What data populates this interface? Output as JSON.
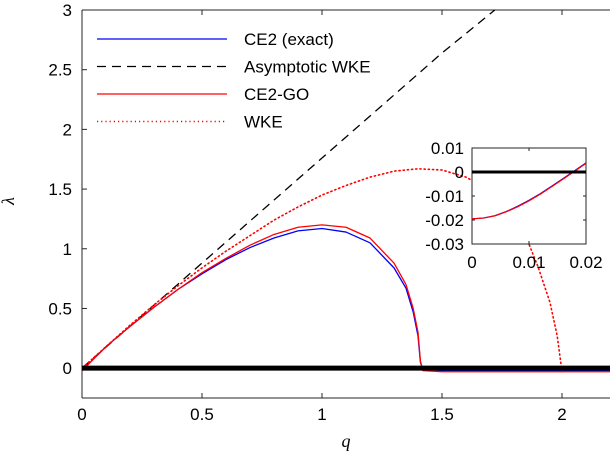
{
  "chart_data": [
    {
      "type": "line",
      "xlabel": "q",
      "ylabel": "λ",
      "xlim": [
        0,
        2.2
      ],
      "ylim": [
        -0.25,
        3
      ],
      "xticks": [
        "0",
        "0.5",
        "1",
        "1.5",
        "2"
      ],
      "yticks": [
        "0",
        "0.5",
        "1",
        "1.5",
        "2",
        "2.5",
        "3"
      ],
      "legend_position": "top-left",
      "series": [
        {
          "name": "CE2 (exact)",
          "color": "#0000ff",
          "style": "solid",
          "x": [
            0,
            0.05,
            0.1,
            0.2,
            0.3,
            0.4,
            0.5,
            0.6,
            0.7,
            0.8,
            0.9,
            1.0,
            1.1,
            1.2,
            1.3,
            1.35,
            1.38,
            1.4,
            1.41,
            1.42,
            1.5,
            1.8,
            2.2
          ],
          "y": [
            -0.02,
            0.08,
            0.18,
            0.35,
            0.51,
            0.66,
            0.79,
            0.91,
            1.01,
            1.09,
            1.15,
            1.17,
            1.14,
            1.05,
            0.84,
            0.67,
            0.47,
            0.27,
            0.05,
            -0.01,
            -0.02,
            -0.02,
            -0.02
          ]
        },
        {
          "name": "Asymptotic WKE",
          "color": "#000000",
          "style": "dashed",
          "x": [
            0,
            0.5,
            1.0,
            1.5,
            1.72
          ],
          "y": [
            0,
            0.88,
            1.76,
            2.64,
            3.0
          ]
        },
        {
          "name": "CE2-GO",
          "color": "#ff0000",
          "style": "solid",
          "x": [
            0,
            0.05,
            0.1,
            0.2,
            0.3,
            0.4,
            0.5,
            0.6,
            0.7,
            0.8,
            0.9,
            1.0,
            1.1,
            1.2,
            1.3,
            1.35,
            1.38,
            1.4,
            1.41,
            1.42,
            1.5,
            1.8,
            2.2
          ],
          "y": [
            -0.02,
            0.08,
            0.18,
            0.35,
            0.51,
            0.66,
            0.8,
            0.92,
            1.03,
            1.12,
            1.18,
            1.2,
            1.18,
            1.09,
            0.88,
            0.7,
            0.5,
            0.3,
            0.06,
            -0.02,
            -0.03,
            -0.03,
            -0.03
          ]
        },
        {
          "name": "WKE",
          "color": "#ff0000",
          "style": "dotted",
          "x": [
            0,
            0.1,
            0.2,
            0.3,
            0.4,
            0.5,
            0.6,
            0.7,
            0.8,
            0.9,
            1.0,
            1.1,
            1.2,
            1.3,
            1.4,
            1.5,
            1.6,
            1.7,
            1.8,
            1.85,
            1.9,
            1.95,
            1.98,
            2.0
          ],
          "y": [
            0,
            0.18,
            0.36,
            0.53,
            0.69,
            0.84,
            0.98,
            1.11,
            1.24,
            1.35,
            1.45,
            1.53,
            1.6,
            1.65,
            1.67,
            1.66,
            1.6,
            1.49,
            1.28,
            1.1,
            0.85,
            0.55,
            0.27,
            -0.03
          ]
        },
        {
          "name": "",
          "color": "#000000",
          "style": "thick",
          "x": [
            0,
            2.2
          ],
          "y": [
            0,
            0
          ]
        }
      ]
    },
    {
      "type": "line",
      "xlim": [
        0,
        0.02
      ],
      "ylim": [
        -0.03,
        0.01
      ],
      "xticks": [
        "0",
        "0.01",
        "0.02"
      ],
      "yticks": [
        "0.01",
        "0",
        "-0.01",
        "-0.02",
        "-0.03"
      ],
      "series": [
        {
          "color": "#0000ff",
          "style": "solid",
          "x": [
            0,
            0.002,
            0.004,
            0.006,
            0.008,
            0.01,
            0.012,
            0.014,
            0.016,
            0.018,
            0.02
          ],
          "y": [
            -0.0195,
            -0.0192,
            -0.0182,
            -0.0165,
            -0.0143,
            -0.0118,
            -0.009,
            -0.0059,
            -0.0027,
            0.0005,
            0.0038
          ]
        },
        {
          "color": "#ff0000",
          "style": "solid",
          "x": [
            0,
            0.002,
            0.004,
            0.006,
            0.008,
            0.01,
            0.012,
            0.014,
            0.016,
            0.018,
            0.02
          ],
          "y": [
            -0.0195,
            -0.0192,
            -0.0183,
            -0.0166,
            -0.0145,
            -0.012,
            -0.0092,
            -0.0061,
            -0.0029,
            0.0003,
            0.0036
          ]
        },
        {
          "color": "#000000",
          "style": "thick",
          "x": [
            0,
            0.02
          ],
          "y": [
            0,
            0
          ]
        }
      ]
    }
  ]
}
